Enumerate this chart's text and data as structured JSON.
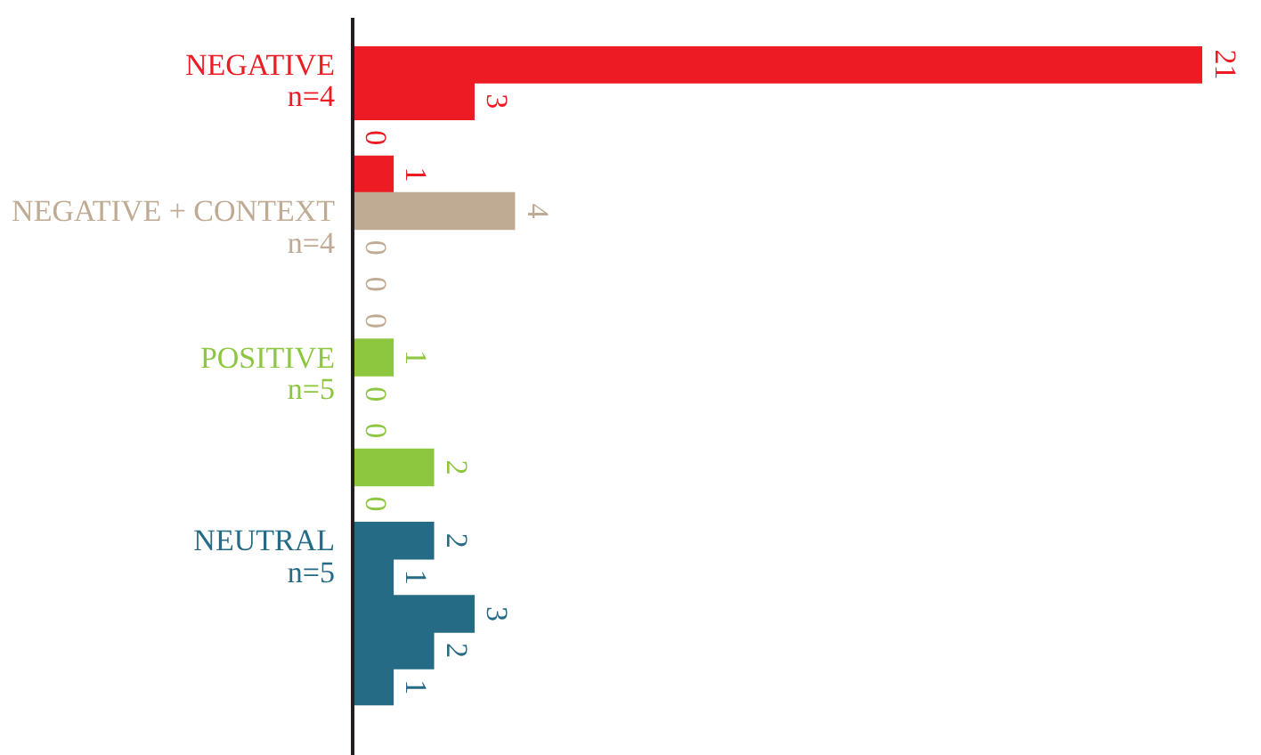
{
  "chart_data": {
    "type": "bar",
    "orientation": "horizontal",
    "categories": [
      "NEGATIVE\nn=4",
      null,
      null,
      null,
      "NEGATIVE + CONTEXT\nn=4",
      null,
      null,
      null,
      "POSITIVE\nn=5",
      null,
      null,
      null,
      null,
      "NEUTRAL\nn=5",
      null,
      null,
      null,
      null
    ],
    "values": [
      21,
      3,
      0,
      1,
      4,
      0,
      0,
      0,
      1,
      0,
      0,
      2,
      0,
      2,
      1,
      3,
      2,
      1
    ],
    "colors": [
      "#ed1c24",
      "#ed1c24",
      "#ed1c24",
      "#ed1c24",
      "#bfab93",
      "#bfab93",
      "#bfab93",
      "#bfab93",
      "#8dc63f",
      "#8dc63f",
      "#8dc63f",
      "#8dc63f",
      "#8dc63f",
      "#266b85",
      "#266b85",
      "#266b85",
      "#266b85",
      "#266b85"
    ],
    "tick_labels": "y",
    "data_labels": true
  }
}
